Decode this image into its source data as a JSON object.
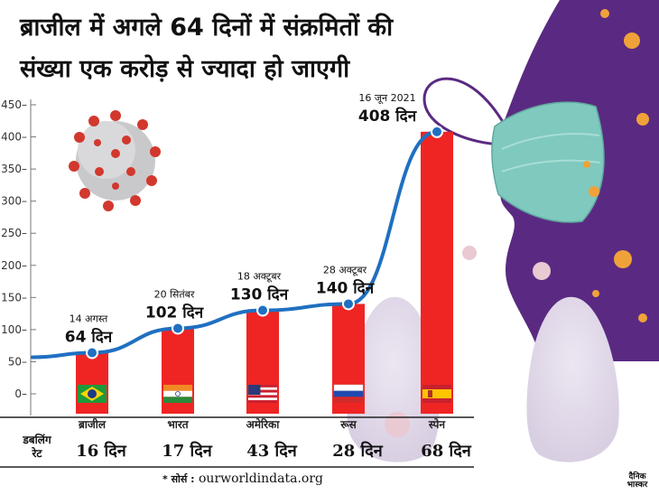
{
  "title": {
    "line1": "ब्राजील में अगले 64 दिनों में संक्रमितों की",
    "line2": "संख्या एक करोड़ से ज्यादा हो जाएगी"
  },
  "doubling_rate_label": "डबलिंग\nरेट",
  "source": {
    "prefix": "* सोर्स :",
    "text": "ourworldindata.org"
  },
  "logo": "दैनिक\nभास्कर",
  "colors": {
    "bar": "#ef2524",
    "line": "#1f70c1",
    "accent_purple": "#5a2a82",
    "mask": "#7fc9be"
  },
  "chart_data": {
    "type": "bar",
    "y_ticks": [
      "0",
      "50",
      "100",
      "150",
      "200",
      "250",
      "300",
      "350",
      "400",
      "450"
    ],
    "ylim": [
      0,
      450
    ],
    "grid": false,
    "categories": [
      "ब्राजील",
      "भारत",
      "अमेरिका",
      "रूस",
      "स्पेन"
    ],
    "flag_icons": [
      "brazil-flag-icon",
      "india-flag-icon",
      "usa-flag-icon",
      "russia-flag-icon",
      "spain-flag-icon"
    ],
    "values": [
      64,
      102,
      130,
      140,
      408
    ],
    "dates": [
      "14 अगस्त",
      "20 सितंबर",
      "18 अक्टूबर",
      "28 अक्टूबर",
      "16 जून 2021"
    ],
    "value_labels": [
      "64 दिन",
      "102 दिन",
      "130 दिन",
      "140 दिन",
      "408 दिन"
    ],
    "doubling_rates": [
      "16 दिन",
      "17 दिन",
      "43 दिन",
      "28 दिन",
      "68 दिन"
    ],
    "line_start_value": 57
  }
}
